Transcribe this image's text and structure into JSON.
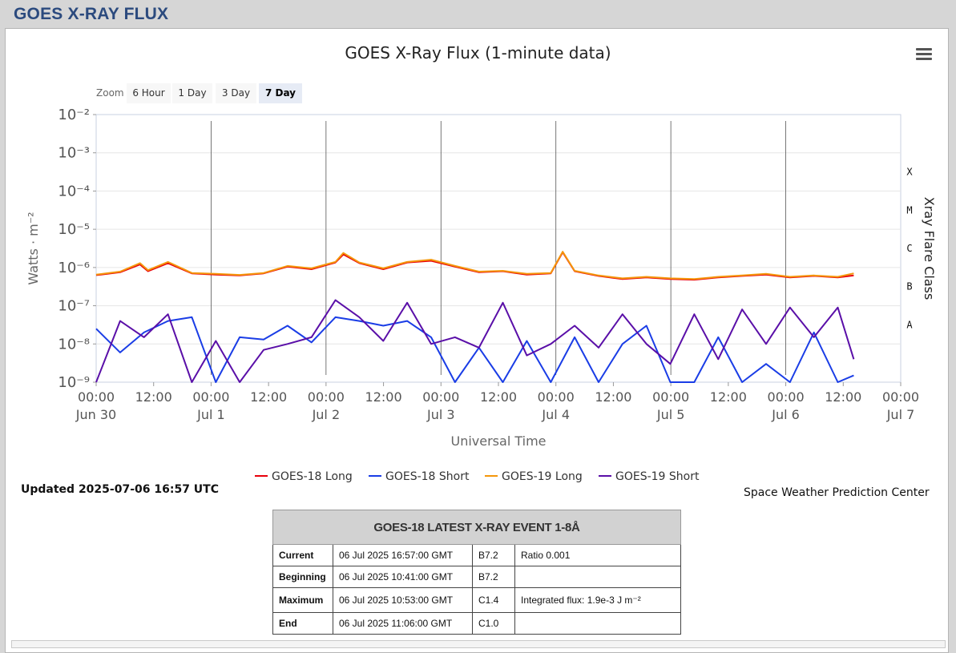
{
  "header": {
    "title": "GOES X-RAY FLUX"
  },
  "menu": {
    "icon": "hamburger-menu-icon"
  },
  "zoom": {
    "label": "Zoom",
    "options": [
      "6 Hour",
      "1 Day",
      "3 Day",
      "7 Day"
    ],
    "active": "7 Day"
  },
  "chart_data": {
    "type": "line",
    "title": "GOES X-Ray Flux (1-minute data)",
    "xlabel": "Universal Time",
    "ylabel": "Watts · m⁻²",
    "y2label": "Xray Flare Class",
    "yscale": "log",
    "ylim": [
      1e-09,
      0.01
    ],
    "y_ticks": [
      "10⁻²",
      "10⁻³",
      "10⁻⁴",
      "10⁻⁵",
      "10⁻⁶",
      "10⁻⁷",
      "10⁻⁸",
      "10⁻⁹"
    ],
    "flare_classes": [
      "X",
      "M",
      "C",
      "B",
      "A"
    ],
    "x_ticks": [
      {
        "time": "00:00",
        "date": "Jun 30"
      },
      {
        "time": "12:00",
        "date": ""
      },
      {
        "time": "00:00",
        "date": "Jul 1"
      },
      {
        "time": "12:00",
        "date": ""
      },
      {
        "time": "00:00",
        "date": "Jul 2"
      },
      {
        "time": "12:00",
        "date": ""
      },
      {
        "time": "00:00",
        "date": "Jul 3"
      },
      {
        "time": "12:00",
        "date": ""
      },
      {
        "time": "00:00",
        "date": "Jul 4"
      },
      {
        "time": "12:00",
        "date": ""
      },
      {
        "time": "00:00",
        "date": "Jul 5"
      },
      {
        "time": "12:00",
        "date": ""
      },
      {
        "time": "00:00",
        "date": "Jul 6"
      },
      {
        "time": "12:00",
        "date": ""
      },
      {
        "time": "00:00",
        "date": "Jul 7"
      }
    ],
    "xlim": [
      "2025-06-30 00:00",
      "2025-07-07 00:00"
    ],
    "legend_position": "bottom-center",
    "series": [
      {
        "name": "GOES-18 Long",
        "color": "#e8000b",
        "points": [
          [
            0,
            6.3e-07
          ],
          [
            12,
            7.5e-07
          ],
          [
            22,
            1.2e-06
          ],
          [
            26,
            8e-07
          ],
          [
            36,
            1.3e-06
          ],
          [
            48,
            7e-07
          ],
          [
            60,
            6.5e-07
          ],
          [
            72,
            6.2e-07
          ],
          [
            84,
            7e-07
          ],
          [
            96,
            1.05e-06
          ],
          [
            108,
            9e-07
          ],
          [
            120,
            1.35e-06
          ],
          [
            124,
            2.2e-06
          ],
          [
            132,
            1.3e-06
          ],
          [
            144,
            9e-07
          ],
          [
            156,
            1.35e-06
          ],
          [
            168,
            1.5e-06
          ],
          [
            180,
            1.05e-06
          ],
          [
            192,
            7.5e-07
          ],
          [
            204,
            8e-07
          ],
          [
            216,
            6.5e-07
          ],
          [
            228,
            7e-07
          ],
          [
            234,
            2.5e-06
          ],
          [
            240,
            8e-07
          ],
          [
            252,
            6e-07
          ],
          [
            264,
            5e-07
          ],
          [
            276,
            5.5e-07
          ],
          [
            288,
            5e-07
          ],
          [
            300,
            4.8e-07
          ],
          [
            312,
            5.5e-07
          ],
          [
            324,
            6e-07
          ],
          [
            336,
            6.5e-07
          ],
          [
            348,
            5.5e-07
          ],
          [
            360,
            6e-07
          ],
          [
            372,
            5.5e-07
          ],
          [
            380,
            6.2e-07
          ]
        ]
      },
      {
        "name": "GOES-18 Short",
        "color": "#1a3de6",
        "points": [
          [
            0,
            2.5e-08
          ],
          [
            12,
            6e-09
          ],
          [
            24,
            2e-08
          ],
          [
            36,
            4e-08
          ],
          [
            48,
            5e-08
          ],
          [
            60,
            1e-09
          ],
          [
            72,
            1.5e-08
          ],
          [
            84,
            1.3e-08
          ],
          [
            96,
            3e-08
          ],
          [
            108,
            1.1e-08
          ],
          [
            120,
            5e-08
          ],
          [
            132,
            4e-08
          ],
          [
            144,
            3e-08
          ],
          [
            156,
            4e-08
          ],
          [
            168,
            1.5e-08
          ],
          [
            180,
            1e-09
          ],
          [
            192,
            8e-09
          ],
          [
            204,
            1e-09
          ],
          [
            216,
            1.2e-08
          ],
          [
            228,
            1e-09
          ],
          [
            240,
            1.5e-08
          ],
          [
            252,
            1e-09
          ],
          [
            264,
            1e-08
          ],
          [
            276,
            3e-08
          ],
          [
            288,
            1e-09
          ],
          [
            300,
            1e-09
          ],
          [
            312,
            1.5e-08
          ],
          [
            324,
            1e-09
          ],
          [
            336,
            3e-09
          ],
          [
            348,
            1e-09
          ],
          [
            360,
            2e-08
          ],
          [
            372,
            1e-09
          ],
          [
            380,
            1.5e-09
          ]
        ]
      },
      {
        "name": "GOES-19 Long",
        "color": "#f4960b",
        "points": [
          [
            0,
            6.5e-07
          ],
          [
            12,
            7.8e-07
          ],
          [
            22,
            1.3e-06
          ],
          [
            26,
            8.5e-07
          ],
          [
            36,
            1.4e-06
          ],
          [
            48,
            7.2e-07
          ],
          [
            60,
            6.8e-07
          ],
          [
            72,
            6.4e-07
          ],
          [
            84,
            7.2e-07
          ],
          [
            96,
            1.1e-06
          ],
          [
            108,
            9.5e-07
          ],
          [
            120,
            1.4e-06
          ],
          [
            124,
            2.4e-06
          ],
          [
            132,
            1.35e-06
          ],
          [
            144,
            9.5e-07
          ],
          [
            156,
            1.4e-06
          ],
          [
            168,
            1.6e-06
          ],
          [
            180,
            1.1e-06
          ],
          [
            192,
            7.8e-07
          ],
          [
            204,
            8.2e-07
          ],
          [
            216,
            6.8e-07
          ],
          [
            228,
            7.2e-07
          ],
          [
            234,
            2.6e-06
          ],
          [
            240,
            8.2e-07
          ],
          [
            252,
            6.2e-07
          ],
          [
            264,
            5.2e-07
          ],
          [
            276,
            5.7e-07
          ],
          [
            288,
            5.2e-07
          ],
          [
            300,
            5e-07
          ],
          [
            312,
            5.7e-07
          ],
          [
            324,
            6.2e-07
          ],
          [
            336,
            6.8e-07
          ],
          [
            348,
            5.7e-07
          ],
          [
            360,
            6.2e-07
          ],
          [
            372,
            5.7e-07
          ],
          [
            380,
            7e-07
          ]
        ]
      },
      {
        "name": "GOES-19 Short",
        "color": "#5a0fa8",
        "points": [
          [
            0,
            1e-09
          ],
          [
            12,
            4e-08
          ],
          [
            24,
            1.5e-08
          ],
          [
            36,
            6e-08
          ],
          [
            48,
            1e-09
          ],
          [
            60,
            1.2e-08
          ],
          [
            72,
            1e-09
          ],
          [
            84,
            7e-09
          ],
          [
            96,
            1e-08
          ],
          [
            108,
            1.5e-08
          ],
          [
            120,
            1.4e-07
          ],
          [
            132,
            5e-08
          ],
          [
            144,
            1.2e-08
          ],
          [
            156,
            1.2e-07
          ],
          [
            168,
            1e-08
          ],
          [
            180,
            1.5e-08
          ],
          [
            192,
            8e-09
          ],
          [
            204,
            1.2e-07
          ],
          [
            216,
            5e-09
          ],
          [
            228,
            1e-08
          ],
          [
            240,
            3e-08
          ],
          [
            252,
            8e-09
          ],
          [
            264,
            6e-08
          ],
          [
            276,
            1e-08
          ],
          [
            288,
            3e-09
          ],
          [
            300,
            6e-08
          ],
          [
            312,
            4e-09
          ],
          [
            324,
            8e-08
          ],
          [
            336,
            1e-08
          ],
          [
            348,
            9e-08
          ],
          [
            360,
            1.5e-08
          ],
          [
            372,
            9e-08
          ],
          [
            380,
            4e-09
          ]
        ]
      }
    ]
  },
  "updated_text": "Updated 2025-07-06 16:57 UTC",
  "credit_text": "Space Weather Prediction Center",
  "event_table": {
    "title": "GOES-18 LATEST X-RAY EVENT 1-8Å",
    "rows": [
      {
        "label": "Current",
        "time": "06 Jul 2025 16:57:00 GMT",
        "class": "B7.2",
        "note": "Ratio 0.001"
      },
      {
        "label": "Beginning",
        "time": "06 Jul 2025 10:41:00 GMT",
        "class": "B7.2",
        "note": ""
      },
      {
        "label": "Maximum",
        "time": "06 Jul 2025 10:53:00 GMT",
        "class": "C1.4",
        "note": "Integrated flux: 1.9e-3 J m⁻²"
      },
      {
        "label": "End",
        "time": "06 Jul 2025 11:06:00 GMT",
        "class": "C1.0",
        "note": ""
      }
    ]
  }
}
